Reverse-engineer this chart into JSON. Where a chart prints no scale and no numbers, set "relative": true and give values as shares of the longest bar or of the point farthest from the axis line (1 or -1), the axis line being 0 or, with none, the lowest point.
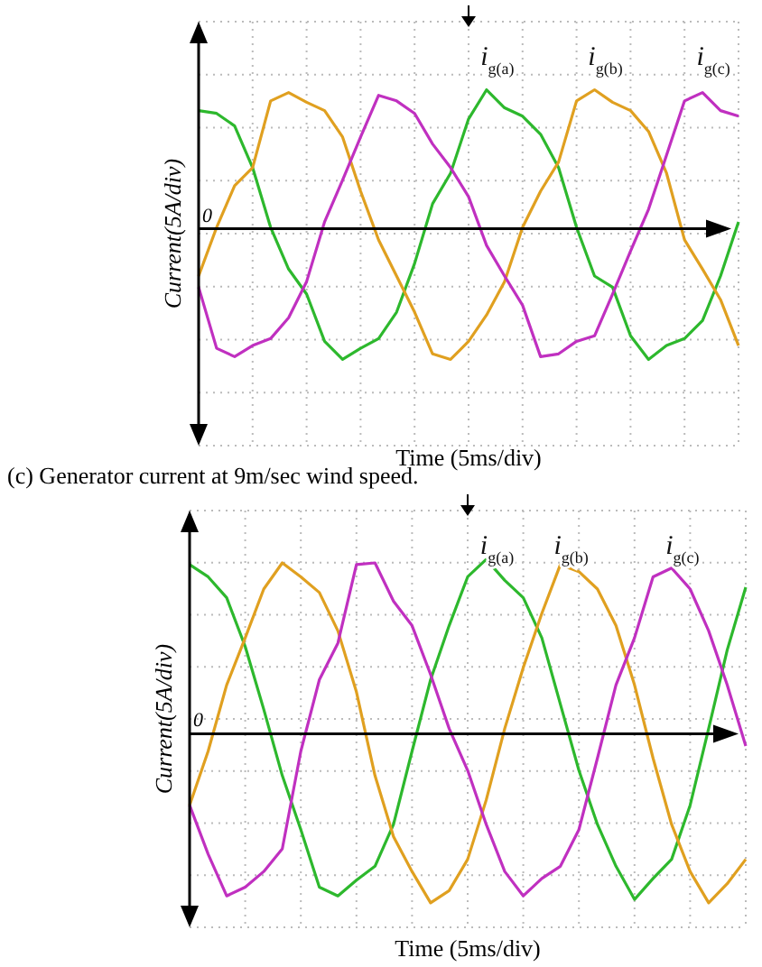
{
  "chart_data": [
    {
      "type": "line",
      "title": "(c) Generator current at 9m/sec wind speed.",
      "xlabel": "Time (5ms/div)",
      "ylabel": "Current(5A/div)",
      "relative": true,
      "grid": true,
      "legend": false,
      "annotations": [
        "0"
      ],
      "categories": [
        null,
        null,
        null,
        null,
        null,
        null,
        null,
        null,
        null,
        null,
        null,
        null,
        null,
        null,
        null,
        null,
        null,
        null,
        null,
        null,
        null,
        null,
        null,
        null,
        null,
        null,
        null,
        null,
        null,
        null,
        null
      ],
      "series": [
        {
          "name": "i$_{g(a)}$",
          "color": "#2db82d",
          "values": [
            0.85,
            0.83,
            0.74,
            0.44,
            0.01,
            -0.29,
            -0.47,
            -0.81,
            -0.94,
            -0.86,
            -0.79,
            -0.6,
            -0.25,
            0.18,
            0.4,
            0.79,
            1.0,
            0.87,
            0.81,
            0.68,
            0.44,
            0.01,
            -0.34,
            -0.42,
            -0.77,
            -0.94,
            -0.84,
            -0.79,
            -0.66,
            -0.34,
            0.05
          ]
        },
        {
          "name": "i$_{g(b)}$",
          "color": "#e0a020",
          "values": [
            -0.34,
            0.01,
            0.31,
            0.44,
            0.92,
            0.98,
            0.91,
            0.85,
            0.66,
            0.27,
            -0.08,
            -0.34,
            -0.6,
            -0.9,
            -0.94,
            -0.81,
            -0.62,
            -0.38,
            0.01,
            0.27,
            0.48,
            0.92,
            1.0,
            0.91,
            0.85,
            0.7,
            0.4,
            -0.08,
            -0.29,
            -0.51,
            -0.84
          ]
        },
        {
          "name": "i$_{g(c)}$",
          "color": "#c030c0",
          "values": [
            -0.42,
            -0.86,
            -0.92,
            -0.84,
            -0.79,
            -0.64,
            -0.38,
            0.05,
            0.35,
            0.66,
            0.96,
            0.92,
            0.83,
            0.61,
            0.44,
            0.23,
            -0.12,
            -0.34,
            -0.55,
            -0.92,
            -0.9,
            -0.81,
            -0.77,
            -0.47,
            -0.16,
            0.14,
            0.53,
            0.92,
            0.98,
            0.85,
            0.81
          ]
        }
      ]
    },
    {
      "type": "line",
      "xlabel": "Time (5ms/div)",
      "ylabel": "Current(5A/div)",
      "relative": true,
      "grid": true,
      "legend": false,
      "annotations": [
        "0"
      ],
      "categories": [
        null,
        null,
        null,
        null,
        null,
        null,
        null,
        null,
        null,
        null,
        null,
        null,
        null,
        null,
        null,
        null,
        null,
        null,
        null,
        null,
        null,
        null,
        null,
        null,
        null,
        null,
        null,
        null,
        null,
        null,
        null
      ],
      "series": [
        {
          "name": "i$_{g(a)}$",
          "color": "#2db82d",
          "values": [
            0.97,
            0.9,
            0.78,
            0.5,
            0.14,
            -0.24,
            -0.55,
            -0.88,
            -0.93,
            -0.84,
            -0.76,
            -0.52,
            -0.1,
            0.31,
            0.62,
            0.9,
            1.0,
            0.88,
            0.78,
            0.55,
            0.17,
            -0.21,
            -0.52,
            -0.76,
            -0.95,
            -0.83,
            -0.72,
            -0.41,
            0.03,
            0.48,
            0.84
          ]
        },
        {
          "name": "i$_{g(b)}$",
          "color": "#e0a020",
          "values": [
            -0.41,
            -0.1,
            0.28,
            0.55,
            0.83,
            0.98,
            0.9,
            0.81,
            0.59,
            0.24,
            -0.24,
            -0.59,
            -0.79,
            -0.97,
            -0.9,
            -0.72,
            -0.38,
            0.03,
            0.38,
            0.69,
            0.97,
            0.93,
            0.83,
            0.62,
            0.28,
            -0.14,
            -0.52,
            -0.79,
            -0.97,
            -0.86,
            -0.72
          ]
        },
        {
          "name": "i$_{g(c)}$",
          "color": "#c030c0",
          "values": [
            -0.41,
            -0.69,
            -0.93,
            -0.88,
            -0.79,
            -0.66,
            -0.1,
            0.31,
            0.52,
            0.97,
            0.98,
            0.76,
            0.62,
            0.34,
            0.03,
            -0.21,
            -0.52,
            -0.79,
            -0.93,
            -0.83,
            -0.76,
            -0.55,
            -0.14,
            0.28,
            0.55,
            0.9,
            0.95,
            0.83,
            0.59,
            0.28,
            -0.07
          ]
        }
      ]
    }
  ]
}
